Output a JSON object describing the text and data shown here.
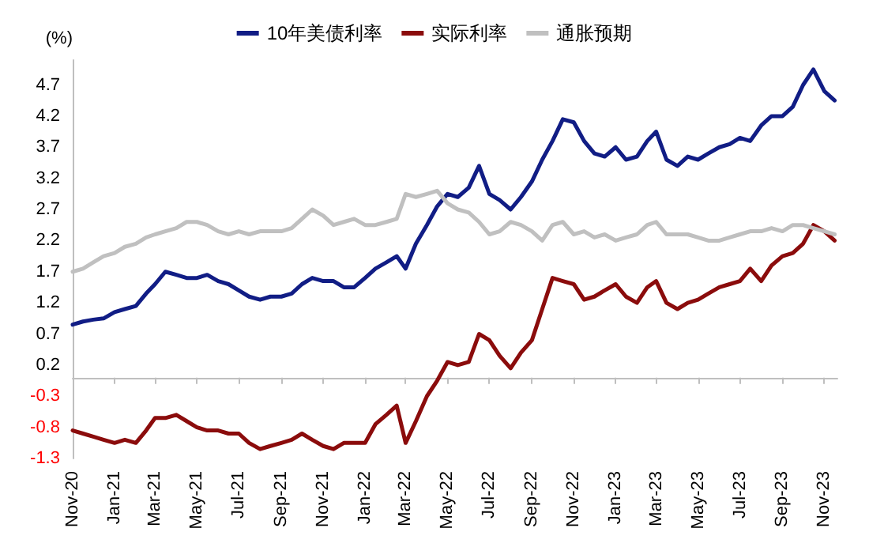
{
  "chart_data": {
    "type": "line",
    "ylabel": "(%)",
    "legend": "top",
    "grid": false,
    "marker": "none",
    "line_style": "solid",
    "x": [
      "2020-11-01",
      "2020-11-16",
      "2020-12-01",
      "2020-12-16",
      "2021-01-01",
      "2021-01-16",
      "2021-02-01",
      "2021-02-16",
      "2021-03-01",
      "2021-03-16",
      "2021-04-01",
      "2021-04-16",
      "2021-05-01",
      "2021-05-16",
      "2021-06-01",
      "2021-06-16",
      "2021-07-01",
      "2021-07-16",
      "2021-08-01",
      "2021-08-16",
      "2021-09-01",
      "2021-09-16",
      "2021-10-01",
      "2021-10-16",
      "2021-11-01",
      "2021-11-16",
      "2021-12-01",
      "2021-12-16",
      "2022-01-01",
      "2022-01-16",
      "2022-02-01",
      "2022-02-16",
      "2022-03-01",
      "2022-03-16",
      "2022-04-01",
      "2022-04-16",
      "2022-05-01",
      "2022-05-16",
      "2022-06-01",
      "2022-06-16",
      "2022-07-01",
      "2022-07-16",
      "2022-08-01",
      "2022-08-16",
      "2022-09-01",
      "2022-09-16",
      "2022-10-01",
      "2022-10-16",
      "2022-11-01",
      "2022-11-16",
      "2022-12-01",
      "2022-12-16",
      "2023-01-01",
      "2023-01-16",
      "2023-02-01",
      "2023-02-16",
      "2023-03-01",
      "2023-03-16",
      "2023-04-01",
      "2023-04-16",
      "2023-05-01",
      "2023-05-16",
      "2023-06-01",
      "2023-06-16",
      "2023-07-01",
      "2023-07-16",
      "2023-08-01",
      "2023-08-16",
      "2023-09-01",
      "2023-09-16",
      "2023-10-01",
      "2023-10-16",
      "2023-11-01",
      "2023-11-16"
    ],
    "series": [
      {
        "name": "10年美债利率",
        "color": "#111d85",
        "values": [
          0.85,
          0.9,
          0.93,
          0.95,
          1.05,
          1.1,
          1.15,
          1.35,
          1.5,
          1.7,
          1.65,
          1.6,
          1.6,
          1.65,
          1.55,
          1.5,
          1.4,
          1.3,
          1.25,
          1.3,
          1.3,
          1.35,
          1.5,
          1.6,
          1.55,
          1.55,
          1.45,
          1.45,
          1.6,
          1.75,
          1.85,
          1.95,
          1.75,
          2.15,
          2.45,
          2.75,
          2.95,
          2.9,
          3.05,
          3.4,
          2.95,
          2.85,
          2.7,
          2.9,
          3.15,
          3.5,
          3.8,
          4.15,
          4.1,
          3.8,
          3.6,
          3.55,
          3.7,
          3.5,
          3.55,
          3.8,
          3.95,
          3.5,
          3.4,
          3.55,
          3.5,
          3.6,
          3.7,
          3.75,
          3.85,
          3.8,
          4.05,
          4.2,
          4.2,
          4.35,
          4.7,
          4.95,
          4.6,
          4.45
        ]
      },
      {
        "name": "实际利率",
        "color": "#8b0c0c",
        "values": [
          -0.85,
          -0.9,
          -0.95,
          -1.0,
          -1.05,
          -1.0,
          -1.05,
          -0.85,
          -0.65,
          -0.65,
          -0.6,
          -0.7,
          -0.8,
          -0.85,
          -0.85,
          -0.9,
          -0.9,
          -1.05,
          -1.15,
          -1.1,
          -1.05,
          -1.0,
          -0.9,
          -1.0,
          -1.1,
          -1.15,
          -1.05,
          -1.05,
          -1.05,
          -0.75,
          -0.6,
          -0.45,
          -1.05,
          -0.7,
          -0.3,
          -0.05,
          0.25,
          0.2,
          0.25,
          0.7,
          0.6,
          0.35,
          0.15,
          0.4,
          0.6,
          1.1,
          1.6,
          1.55,
          1.5,
          1.25,
          1.3,
          1.4,
          1.5,
          1.3,
          1.2,
          1.45,
          1.55,
          1.2,
          1.1,
          1.2,
          1.25,
          1.35,
          1.45,
          1.5,
          1.55,
          1.75,
          1.55,
          1.8,
          1.95,
          2.0,
          2.15,
          2.45,
          2.35,
          2.2
        ]
      },
      {
        "name": "通胀预期",
        "color": "#c0c0c0",
        "values": [
          1.7,
          1.75,
          1.85,
          1.95,
          2.0,
          2.1,
          2.15,
          2.25,
          2.3,
          2.35,
          2.4,
          2.5,
          2.5,
          2.45,
          2.35,
          2.3,
          2.35,
          2.3,
          2.35,
          2.35,
          2.35,
          2.4,
          2.55,
          2.7,
          2.6,
          2.45,
          2.5,
          2.55,
          2.45,
          2.45,
          2.5,
          2.55,
          2.95,
          2.9,
          2.95,
          3.0,
          2.8,
          2.7,
          2.65,
          2.5,
          2.3,
          2.35,
          2.5,
          2.45,
          2.35,
          2.2,
          2.45,
          2.5,
          2.3,
          2.35,
          2.25,
          2.3,
          2.2,
          2.25,
          2.3,
          2.45,
          2.5,
          2.3,
          2.3,
          2.3,
          2.25,
          2.2,
          2.2,
          2.25,
          2.3,
          2.35,
          2.35,
          2.4,
          2.35,
          2.45,
          2.45,
          2.4,
          2.35,
          2.3
        ]
      }
    ],
    "xlim": [
      "2020-11-01",
      "2023-11-20"
    ],
    "xticks": [
      {
        "value": "2020-11-01",
        "label": "Nov-20"
      },
      {
        "value": "2021-01-01",
        "label": "Jan-21"
      },
      {
        "value": "2021-03-01",
        "label": "Mar-21"
      },
      {
        "value": "2021-05-01",
        "label": "May-21"
      },
      {
        "value": "2021-07-01",
        "label": "Jul-21"
      },
      {
        "value": "2021-09-01",
        "label": "Sep-21"
      },
      {
        "value": "2021-11-01",
        "label": "Nov-21"
      },
      {
        "value": "2022-01-01",
        "label": "Jan-22"
      },
      {
        "value": "2022-03-01",
        "label": "Mar-22"
      },
      {
        "value": "2022-05-01",
        "label": "May-22"
      },
      {
        "value": "2022-07-01",
        "label": "Jul-22"
      },
      {
        "value": "2022-09-01",
        "label": "Sep-22"
      },
      {
        "value": "2022-11-01",
        "label": "Nov-22"
      },
      {
        "value": "2023-01-01",
        "label": "Jan-23"
      },
      {
        "value": "2023-03-01",
        "label": "Mar-23"
      },
      {
        "value": "2023-05-01",
        "label": "May-23"
      },
      {
        "value": "2023-07-01",
        "label": "Jul-23"
      },
      {
        "value": "2023-09-01",
        "label": "Sep-23"
      },
      {
        "value": "2023-11-01",
        "label": "Nov-23"
      }
    ],
    "ylim": [
      -1.3,
      5.1
    ],
    "yticks": [
      -1.3,
      -0.8,
      -0.3,
      0.2,
      0.7,
      1.2,
      1.7,
      2.2,
      2.7,
      3.2,
      3.7,
      4.2,
      4.7
    ]
  }
}
